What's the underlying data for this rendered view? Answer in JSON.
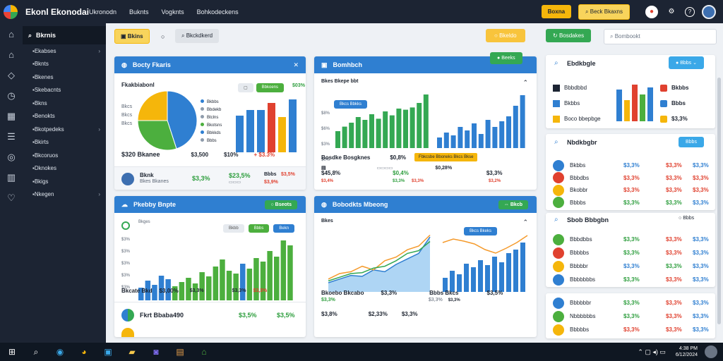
{
  "app": {
    "title": "Ekonl Ekonodai"
  },
  "topnav": [
    "Ukronodn",
    "Buknts",
    "Vogknts",
    "Bohkodeckens"
  ],
  "topright": {
    "btn_yellow": "Boxna",
    "btn_outline": "Beck Bkaxns"
  },
  "sidebar": {
    "search_label": "Bkrnis",
    "items": [
      {
        "label": "Ekabses",
        "chev": true
      },
      {
        "label": "Bknts",
        "chev": false
      },
      {
        "label": "Bkenes",
        "chev": false
      },
      {
        "label": "Skebacnts",
        "chev": false
      },
      {
        "label": "Bkns",
        "chev": false
      },
      {
        "label": "Benokts",
        "chev": false
      },
      {
        "label": "Bkotpedeks",
        "chev": true
      },
      {
        "label": "Bkirts",
        "chev": false
      },
      {
        "label": "Bkcoruos",
        "chev": false
      },
      {
        "label": "Dknokes",
        "chev": false
      },
      {
        "label": "Bkigs",
        "chev": false
      },
      {
        "label": "Nkegen",
        "chev": true
      }
    ]
  },
  "toolbar": {
    "btn_yellow": "Bkins",
    "btn_gray": "Bkckdkerd",
    "btn_right_yellow": "Bkeldo",
    "btn_right_green": "Bosdakes",
    "search_placeholder": "Bombookt",
    "float_green": "Beeks"
  },
  "panel1": {
    "title": "Bocty Fkaris",
    "chart_label": "Fkakbiabonl",
    "legend": [
      "Bkbbs",
      "Bbdekb",
      "Btclns",
      "Bkotsns",
      "Bbkkds",
      "Bbbs"
    ],
    "pie_left_labels": [
      "Bkcs",
      "Bkcs",
      "Bkcs"
    ],
    "total_label": "$320 Bkanee",
    "total_value": "$3,500",
    "pct_1": "$10%",
    "pct_2": "+ $3.3%",
    "small_pills": [
      "Bbkoens",
      "$03%"
    ],
    "row_name": "Bknk",
    "row_sub": "Bkes Bkanes",
    "row_v1": "$3,3%",
    "row_v2": "$23,5%",
    "row_v3": "Bbbs",
    "row_v4": "$3,5%",
    "row_v5": "$3,9%",
    "bars": {
      "heights": [
        52,
        60,
        60,
        70,
        50,
        75
      ],
      "colors": [
        "#2f7fd1",
        "#2f7fd1",
        "#2f7fd1",
        "#e0412f",
        "#f5b60b",
        "#2f7fd1"
      ]
    },
    "pie": [
      {
        "value": 45,
        "color": "#2f7fd1"
      },
      {
        "value": 30,
        "color": "#4caf3e"
      },
      {
        "value": 25,
        "color": "#f5b60b"
      }
    ]
  },
  "panel2": {
    "title": "Bomhbch",
    "chart_top": "Bkes Bkepe bbt",
    "pill": "Bkcs Bbkks",
    "y_ticks": [
      "$8%",
      "$6%",
      "$3%",
      "$0%"
    ],
    "footer_left": "Bosdke Bosgknes",
    "footer_left_val": "$0,8%",
    "footer_right_banner": "Fbkcsbe Bboneks Bkcs Bkse",
    "r1_label": "$45,8%",
    "r1_v1": "$0,28%",
    "r1_v2": "$0,4%",
    "r1_v3": "$3,3%",
    "r2_v1": "$3,4%",
    "r2_v2": "$3,3%",
    "r2_v3": "$3,3%",
    "r2_v4": "$3,2%",
    "green_bars": [
      30,
      38,
      45,
      55,
      50,
      60,
      52,
      65,
      58,
      70,
      68,
      72,
      80,
      95
    ],
    "blue_bars": [
      15,
      22,
      18,
      30,
      25,
      35,
      20,
      40,
      30,
      38,
      45,
      60,
      75
    ]
  },
  "panel3": {
    "title": "Pkebby Bnpte",
    "pill": "Bseots",
    "sub_label": "Bkges",
    "mini_pills": [
      "Bkbb",
      "Bbbs",
      "Bekn"
    ],
    "y_ticks": [
      "$3%",
      "$3%",
      "$3%",
      "$3%",
      "$3%"
    ],
    "foot_left": "Bkcate Bkd",
    "foot_mid": "$3,00%",
    "foot_mid2": "$3,3%",
    "foot_r": "$3,3%",
    "foot_r2": "$3,3%",
    "row_name": "Fkrt Bbaba490",
    "row_v1": "$3,5%",
    "row_v2": "$3,5%",
    "bars": [
      {
        "h": 18,
        "c": "#2f7fd1"
      },
      {
        "h": 28,
        "c": "#2f7fd1"
      },
      {
        "h": 22,
        "c": "#2f7fd1"
      },
      {
        "h": 35,
        "c": "#2f7fd1"
      },
      {
        "h": 30,
        "c": "#2f7fd1"
      },
      {
        "h": 20,
        "c": "#4caf3e"
      },
      {
        "h": 26,
        "c": "#4caf3e"
      },
      {
        "h": 32,
        "c": "#4caf3e"
      },
      {
        "h": 24,
        "c": "#4caf3e"
      },
      {
        "h": 40,
        "c": "#4caf3e"
      },
      {
        "h": 34,
        "c": "#4caf3e"
      },
      {
        "h": 48,
        "c": "#4caf3e"
      },
      {
        "h": 58,
        "c": "#4caf3e"
      },
      {
        "h": 42,
        "c": "#4caf3e"
      },
      {
        "h": 38,
        "c": "#4caf3e"
      },
      {
        "h": 52,
        "c": "#2f7fd1"
      },
      {
        "h": 45,
        "c": "#4caf3e"
      },
      {
        "h": 60,
        "c": "#4caf3e"
      },
      {
        "h": 55,
        "c": "#4caf3e"
      },
      {
        "h": 70,
        "c": "#4caf3e"
      },
      {
        "h": 62,
        "c": "#4caf3e"
      },
      {
        "h": 85,
        "c": "#4caf3e"
      },
      {
        "h": 78,
        "c": "#4caf3e"
      }
    ]
  },
  "panel4": {
    "title": "Bobodkts Mbeong",
    "pill": "Bkcb",
    "tag": "Bkcs Bkeks",
    "axis_top": "Bkes",
    "foot_left": "Bkoebo Bkcabo",
    "foot_left_v": "$3,3%",
    "foot_right": "Bbbs Bkcs",
    "foot_right_v": "$3,5%",
    "r1_v1": "$3,3%",
    "r1_v2": "$3,3%",
    "r1_v3": "$3,3%",
    "r2_v1": "$3,8%",
    "r2_v2": "$2,33%",
    "r2_v3": "$3,3%",
    "line_blue": [
      10,
      14,
      18,
      17,
      24,
      22,
      30,
      36,
      42,
      60
    ],
    "line_orange": [
      14,
      20,
      22,
      28,
      24,
      34,
      38,
      46,
      50,
      62
    ],
    "line_green": [
      12,
      16,
      20,
      21,
      26,
      28,
      34,
      42,
      45,
      55
    ],
    "right_line": [
      70,
      75,
      72,
      68,
      60,
      55,
      62,
      70,
      80
    ],
    "right_bars": [
      20,
      30,
      25,
      40,
      35,
      45,
      38,
      50,
      42,
      55,
      60,
      70
    ]
  },
  "right1": {
    "title": "Ebdkbgle",
    "pill": "Bbbs",
    "items": [
      "Bbbdbbd",
      "Bkbbs",
      "Boco bbepbge"
    ],
    "badges": [
      {
        "label": "Bkbbs",
        "color": "#e0412f"
      },
      {
        "label": "Bbbs",
        "color": "#2f7fd1"
      },
      {
        "label": "$3,3%",
        "color": "#f5b60b"
      }
    ],
    "bars": [
      {
        "h": 45,
        "c": "#2f7fd1"
      },
      {
        "h": 30,
        "c": "#f5b60b"
      },
      {
        "h": 52,
        "c": "#e0412f"
      },
      {
        "h": 38,
        "c": "#4caf3e"
      },
      {
        "h": 48,
        "c": "#2f7fd1"
      }
    ]
  },
  "right2": {
    "title": "Nbdkbgbr",
    "pill": "Bbbs",
    "rows": [
      {
        "name": "Bkbbs",
        "v1": "$3,3%",
        "v2": "$3,3%",
        "v3": "$3,3%",
        "c1": "b",
        "c2": "r",
        "c3": "b",
        "icon": "#2f7fd1"
      },
      {
        "name": "Bbbdbs",
        "v1": "$3,3%",
        "v2": "$3,3%",
        "v3": "$3,3%",
        "c1": "r",
        "c2": "r",
        "c3": "r",
        "icon": "#e0412f"
      },
      {
        "name": "Bkobbr",
        "v1": "$3,3%",
        "v2": "$3,3%",
        "v3": "$3,3%",
        "c1": "r",
        "c2": "r",
        "c3": "r",
        "icon": "#f5b60b"
      },
      {
        "name": "Bbbbs",
        "v1": "$3,3%",
        "v2": "$3,3%",
        "v3": "$3,3%",
        "c1": "g",
        "c2": "g",
        "c3": "b",
        "icon": "#4caf3e"
      }
    ]
  },
  "right3": {
    "title": "Sbob Bbbgbn",
    "pill": "Bbbs",
    "rows": [
      {
        "name": "Bbbdbbs",
        "v1": "$3,3%",
        "v2": "$3,3%",
        "v3": "$3,3%",
        "c1": "g",
        "c2": "r",
        "c3": "b",
        "icon": "#4caf3e"
      },
      {
        "name": "Bbbbbs",
        "v1": "$3,3%",
        "v2": "$3,3%",
        "v3": "$3,3%",
        "c1": "g",
        "c2": "r",
        "c3": "b",
        "icon": "#e0412f"
      },
      {
        "name": "Bbbbbr",
        "v1": "$3,3%",
        "v2": "$3,3%",
        "v3": "$3,3%",
        "c1": "b",
        "c2": "g",
        "c3": "b",
        "icon": "#f5b60b"
      },
      {
        "name": "Bbbbbbbs",
        "v1": "$3,3%",
        "v2": "$3,3%",
        "v3": "$3,3%",
        "c1": "g",
        "c2": "r",
        "c3": "b",
        "icon": "#2f7fd1"
      }
    ]
  },
  "right4": {
    "rows": [
      {
        "name": "Bbbbbbr",
        "v1": "$3,3%",
        "v2": "$3,3%",
        "v3": "$3,3%",
        "c1": "g",
        "c2": "r",
        "c3": "b",
        "icon": "#2f7fd1"
      },
      {
        "name": "Nbbbbbbs",
        "v1": "$3,3%",
        "v2": "$3,3%",
        "v3": "$3,3%",
        "c1": "g",
        "c2": "r",
        "c3": "b",
        "icon": "#4caf3e"
      },
      {
        "name": "Bbbbbs",
        "v1": "$3,3%",
        "v2": "$3,3%",
        "v3": "$3,3%",
        "c1": "r",
        "c2": "r",
        "c3": "b",
        "icon": "#f5b60b"
      }
    ]
  },
  "taskbar": {
    "clock_time": "4:38 PM",
    "clock_date": "6/12/2024"
  }
}
